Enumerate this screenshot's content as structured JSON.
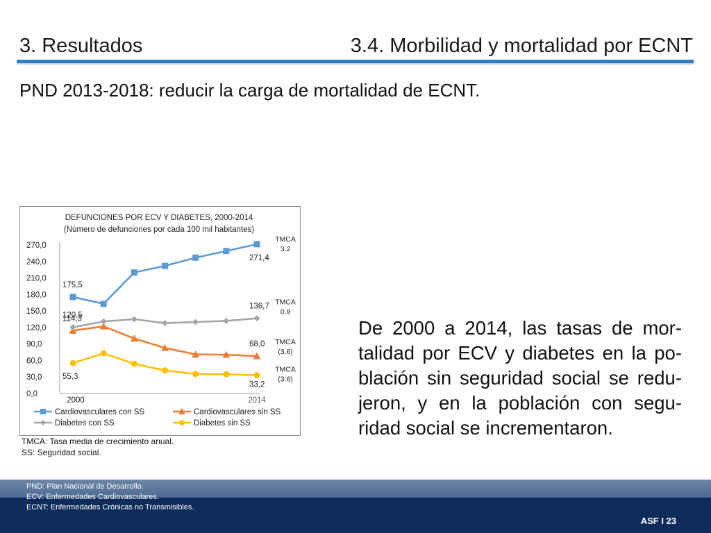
{
  "header": {
    "section": "3. Resultados",
    "subsection": "3.4. Morbilidad y mortalidad por ECNT"
  },
  "objective": "PND 2013-2018: reducir la carga de mortalidad de ECNT.",
  "chart_data": {
    "type": "line",
    "title": "DEFUNCIONES POR ECV Y DIABETES, 2000-2014",
    "subtitle": "(Número de defunciones por cada 100 mil habitantes)",
    "x_labels": [
      "2000",
      "2014"
    ],
    "ylim": [
      0,
      270
    ],
    "y_ticks": [
      "0,0",
      "30,0",
      "60,0",
      "90,0",
      "120,0",
      "150,0",
      "180,0",
      "210,0",
      "240,0",
      "270,0"
    ],
    "series": [
      {
        "name": "Cardiovasculares con SS",
        "color": "#5b9bd5",
        "marker": "square",
        "values": [
          175.5,
          163,
          220,
          232,
          247,
          259,
          271.4
        ],
        "start_label": "175,5",
        "end_label": "271,4",
        "tmca": [
          "TMCA",
          "3.2"
        ]
      },
      {
        "name": "Cardiovasculares sin SS",
        "color": "#ed7d31",
        "marker": "triangle",
        "values": [
          114.3,
          122,
          100,
          83,
          71,
          70.5,
          68.0
        ],
        "start_label": "114,3",
        "end_label": "68,0",
        "tmca": [
          "TMCA",
          "(3.6)"
        ]
      },
      {
        "name": "Diabetes con SS",
        "color": "#a5a5a5",
        "marker": "diamond",
        "values": [
          120.5,
          131,
          135,
          128,
          130,
          132,
          136.7
        ],
        "start_label": "120,5",
        "end_label": "136,7",
        "tmca": [
          "TMCA",
          "0.9"
        ]
      },
      {
        "name": "Diabetes sin SS",
        "color": "#ffc000",
        "marker": "circle",
        "values": [
          55.3,
          73,
          54,
          42,
          35.5,
          35,
          33.2
        ],
        "start_label": "55,3",
        "end_label": "33,2",
        "tmca": [
          "TMCA",
          "(3.6)"
        ]
      }
    ],
    "legend_position": "bottom",
    "grid": false
  },
  "chart_notes": [
    "TMCA: Tasa media de crecimiento anual.",
    "SS: Seguridad social."
  ],
  "summary": "De 2000 a 2014, las tasas de mor-talidad por ECV y diabetes en la po-blación sin seguridad social se redu-jeron, y en la población con segu-ridad social se incrementaron.",
  "footer": {
    "notes": [
      "PND: Plan Nacional de Desarrollo.",
      "ECV: Enfermedades Cardiovasculares.",
      "ECNT: Enfermedades Crónicas no Transmisibles."
    ],
    "slide_number": "ASF I 23"
  }
}
